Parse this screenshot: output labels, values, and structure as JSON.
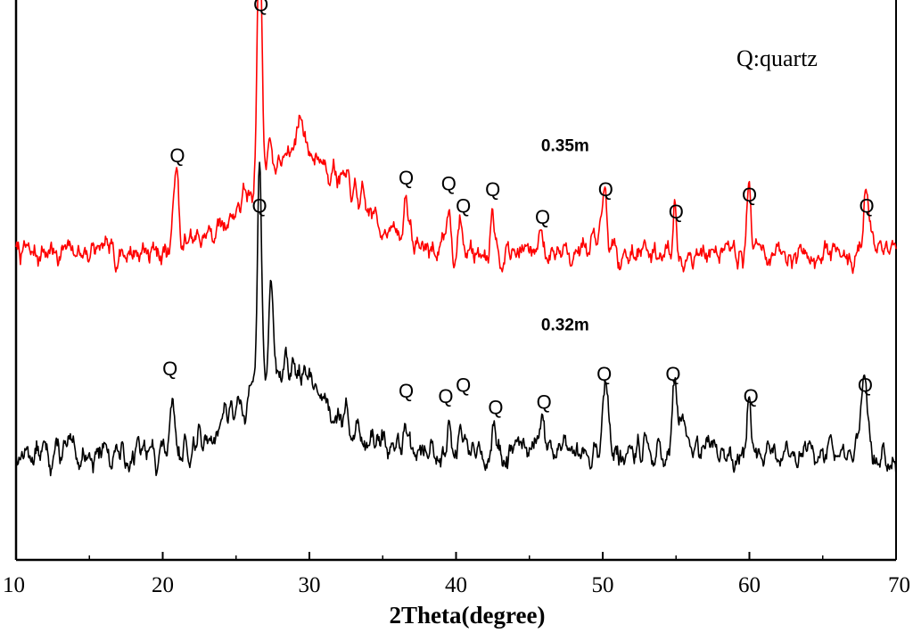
{
  "chart_data": {
    "type": "line",
    "title": "",
    "xlabel": "2Theta(degree)",
    "ylabel": "",
    "xlim": [
      10,
      70
    ],
    "ylim": [
      0,
      100
    ],
    "xticks": [
      10,
      20,
      30,
      40,
      50,
      60,
      70
    ],
    "legend_note": "Q:quartz",
    "series": [
      {
        "name": "0.35m",
        "color": "#ff0000",
        "baseline": 55,
        "noise": 2.3,
        "seed": 7,
        "hump": {
          "center": 29.5,
          "width": 4.8,
          "height": 18
        },
        "peaks": [
          {
            "x": 20.9,
            "h": 15,
            "w": 0.22
          },
          {
            "x": 26.6,
            "h": 46,
            "w": 0.22
          },
          {
            "x": 27.3,
            "h": 6,
            "w": 0.2
          },
          {
            "x": 29.4,
            "h": 7,
            "w": 0.3
          },
          {
            "x": 36.6,
            "h": 9,
            "w": 0.2
          },
          {
            "x": 39.5,
            "h": 9,
            "w": 0.18
          },
          {
            "x": 40.3,
            "h": 5,
            "w": 0.18
          },
          {
            "x": 42.5,
            "h": 9,
            "w": 0.2
          },
          {
            "x": 45.8,
            "h": 4,
            "w": 0.25
          },
          {
            "x": 50.1,
            "h": 10,
            "w": 0.25
          },
          {
            "x": 54.9,
            "h": 9,
            "w": 0.15
          },
          {
            "x": 60.0,
            "h": 12,
            "w": 0.2
          },
          {
            "x": 68.0,
            "h": 10,
            "w": 0.3
          }
        ]
      },
      {
        "name": "0.32m",
        "color": "#000000",
        "baseline": 19,
        "noise": 2.6,
        "seed": 13,
        "hump": {
          "center": 28.5,
          "width": 4.2,
          "height": 15
        },
        "peaks": [
          {
            "x": 20.7,
            "h": 7,
            "w": 0.2
          },
          {
            "x": 24.2,
            "h": 4,
            "w": 0.2
          },
          {
            "x": 26.6,
            "h": 40,
            "w": 0.2
          },
          {
            "x": 27.4,
            "h": 17,
            "w": 0.2
          },
          {
            "x": 36.6,
            "h": 6,
            "w": 0.18
          },
          {
            "x": 39.5,
            "h": 7,
            "w": 0.2
          },
          {
            "x": 40.3,
            "h": 8,
            "w": 0.18
          },
          {
            "x": 42.5,
            "h": 5,
            "w": 0.18
          },
          {
            "x": 45.9,
            "h": 6,
            "w": 0.22
          },
          {
            "x": 50.2,
            "h": 15,
            "w": 0.25
          },
          {
            "x": 54.9,
            "h": 14,
            "w": 0.22
          },
          {
            "x": 55.4,
            "h": 6,
            "w": 0.2
          },
          {
            "x": 60.0,
            "h": 11,
            "w": 0.2
          },
          {
            "x": 67.9,
            "h": 14,
            "w": 0.3
          }
        ]
      }
    ],
    "annotations": [
      {
        "text": "Q",
        "x": 26.7,
        "y": 98
      },
      {
        "text": "Q",
        "x": 21.0,
        "y": 71
      },
      {
        "text": "Q",
        "x": 36.6,
        "y": 67
      },
      {
        "text": "Q",
        "x": 39.5,
        "y": 66
      },
      {
        "text": "Q",
        "x": 40.5,
        "y": 62
      },
      {
        "text": "Q",
        "x": 42.5,
        "y": 65
      },
      {
        "text": "Q",
        "x": 45.9,
        "y": 60
      },
      {
        "text": "Q",
        "x": 50.2,
        "y": 65
      },
      {
        "text": "Q",
        "x": 55.0,
        "y": 61
      },
      {
        "text": "Q",
        "x": 60.0,
        "y": 64
      },
      {
        "text": "Q",
        "x": 68.0,
        "y": 62
      },
      {
        "text": "Q",
        "x": 26.6,
        "y": 62
      },
      {
        "text": "Q",
        "x": 20.5,
        "y": 33
      },
      {
        "text": "Q",
        "x": 36.6,
        "y": 29
      },
      {
        "text": "Q",
        "x": 39.3,
        "y": 28
      },
      {
        "text": "Q",
        "x": 40.5,
        "y": 30
      },
      {
        "text": "Q",
        "x": 42.7,
        "y": 26
      },
      {
        "text": "Q",
        "x": 46.0,
        "y": 27
      },
      {
        "text": "Q",
        "x": 50.1,
        "y": 32
      },
      {
        "text": "Q",
        "x": 54.8,
        "y": 32
      },
      {
        "text": "Q",
        "x": 60.1,
        "y": 28
      },
      {
        "text": "Q",
        "x": 67.9,
        "y": 30
      }
    ],
    "series_labels": [
      {
        "text": "0.35m",
        "x": 45.8,
        "y": 73
      },
      {
        "text": "0.32m",
        "x": 45.8,
        "y": 41
      }
    ]
  }
}
